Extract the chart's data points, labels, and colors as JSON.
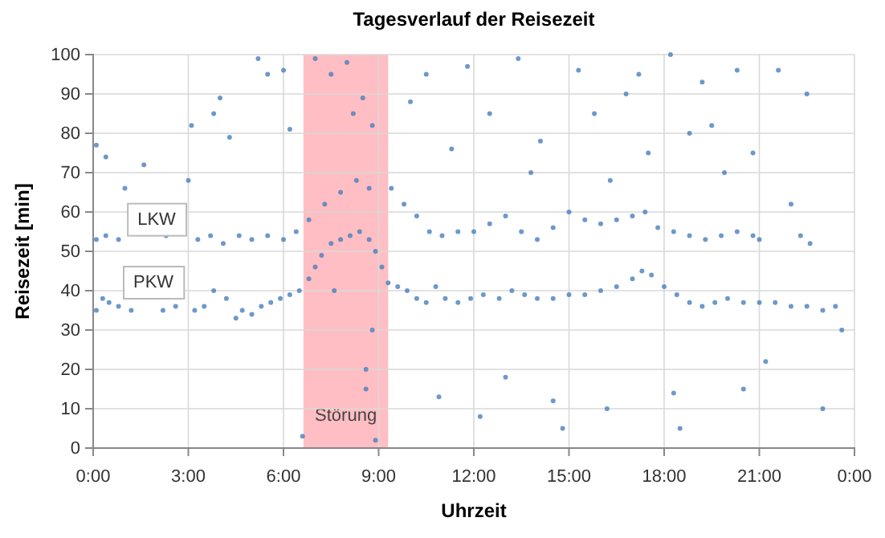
{
  "chart_data": {
    "type": "scatter",
    "title": "Tagesverlauf der Reisezeit",
    "xlabel": "Uhrzeit",
    "ylabel": "Reisezeit [min]",
    "xlim": [
      0,
      24
    ],
    "xticks": [
      {
        "value": 0,
        "label": "0:00"
      },
      {
        "value": 3,
        "label": "3:00"
      },
      {
        "value": 6,
        "label": "6:00"
      },
      {
        "value": 9,
        "label": "9:00"
      },
      {
        "value": 12,
        "label": "12:00"
      },
      {
        "value": 15,
        "label": "15:00"
      },
      {
        "value": 18,
        "label": "18:00"
      },
      {
        "value": 21,
        "label": "21:00"
      },
      {
        "value": 24,
        "label": "0:00"
      }
    ],
    "ylim": [
      0,
      100
    ],
    "yticks": [
      0,
      10,
      20,
      30,
      40,
      50,
      60,
      70,
      80,
      90,
      100
    ],
    "grid": true,
    "marker": "circle",
    "bands": [
      {
        "axis": "x",
        "from": 6.63,
        "to": 9.3,
        "label": "Störung",
        "color": "#ffb3b8"
      }
    ],
    "annotations": [
      {
        "text": "LKW",
        "x": 2.0,
        "y": 58
      },
      {
        "text": "PKW",
        "x": 1.9,
        "y": 42
      }
    ],
    "series": [
      {
        "color": "#4a7ebb",
        "x": [
          0.1,
          0.3,
          0.5,
          0.8,
          1.2,
          2.2,
          2.6,
          3.2,
          3.5,
          3.8,
          4.2,
          4.5,
          4.7,
          5.0,
          5.3,
          5.6,
          5.9,
          6.2,
          6.5,
          6.8,
          7.0,
          7.2,
          7.5,
          7.8,
          8.1,
          8.4,
          8.7,
          8.9,
          9.1,
          9.3,
          9.6,
          9.9,
          10.2,
          10.5,
          10.8,
          11.1,
          11.5,
          11.9,
          12.3,
          12.8,
          13.2,
          13.6,
          14.0,
          14.5,
          15.0,
          15.5,
          16.0,
          16.5,
          17.0,
          17.3,
          17.6,
          18.0,
          18.4,
          18.8,
          19.2,
          19.6,
          20.0,
          20.5,
          21.0,
          21.5,
          22.0,
          22.5,
          23.0,
          23.4,
          0.1,
          0.4,
          0.8,
          3.3,
          3.7,
          4.1,
          4.6,
          5.0,
          5.5,
          6.0,
          6.4,
          6.8,
          7.3,
          7.8,
          8.3,
          8.7,
          9.4,
          9.8,
          10.2,
          10.6,
          11.0,
          11.5,
          12.0,
          12.5,
          13.0,
          13.5,
          14.0,
          14.5,
          15.0,
          15.5,
          16.0,
          16.5,
          17.0,
          17.4,
          17.8,
          18.3,
          18.8,
          19.3,
          19.8,
          20.3,
          20.8,
          21.0,
          22.3,
          22.6,
          0.1,
          0.4,
          1.0,
          1.6,
          2.3,
          3.0,
          3.1,
          3.8,
          4.0,
          4.3,
          5.2,
          5.5,
          6.0,
          6.2,
          7.0,
          7.5,
          8.0,
          8.2,
          8.5,
          8.8,
          8.6,
          8.6,
          8.8,
          7.6,
          6.6,
          8.9,
          10.0,
          10.5,
          10.9,
          11.3,
          11.8,
          12.2,
          12.5,
          13.0,
          13.4,
          13.8,
          14.1,
          14.8,
          14.5,
          15.3,
          15.8,
          16.2,
          16.3,
          16.8,
          17.2,
          17.5,
          18.2,
          18.5,
          18.3,
          18.8,
          19.2,
          19.5,
          19.9,
          20.3,
          20.5,
          20.8,
          21.2,
          21.6,
          22.0,
          22.5,
          23.0,
          23.6
        ],
        "values": [
          35,
          38,
          37,
          36,
          35,
          35,
          36,
          35,
          36,
          40,
          38,
          33,
          35,
          34,
          36,
          37,
          38,
          39,
          40,
          43,
          46,
          49,
          52,
          53,
          54,
          55,
          53,
          50,
          46,
          42,
          41,
          40,
          38,
          37,
          41,
          38,
          37,
          38,
          39,
          38,
          40,
          39,
          38,
          38,
          39,
          39,
          40,
          41,
          43,
          45,
          44,
          41,
          39,
          37,
          36,
          37,
          38,
          37,
          37,
          37,
          36,
          36,
          35,
          36,
          53,
          54,
          53,
          53,
          54,
          52,
          54,
          53,
          54,
          53,
          55,
          58,
          62,
          65,
          68,
          66,
          66,
          62,
          59,
          55,
          54,
          55,
          55,
          57,
          59,
          55,
          53,
          56,
          60,
          58,
          57,
          58,
          59,
          60,
          56,
          55,
          54,
          53,
          54,
          55,
          54,
          53,
          54,
          52,
          77,
          74,
          66,
          72,
          54,
          68,
          82,
          85,
          89,
          79,
          99,
          95,
          96,
          81,
          99,
          95,
          98,
          85,
          89,
          82,
          20,
          15,
          30,
          40,
          3,
          2,
          88,
          95,
          13,
          76,
          97,
          8,
          85,
          18,
          99,
          70,
          78,
          5,
          12,
          96,
          85,
          10,
          68,
          90,
          95,
          75,
          100,
          5,
          14,
          80,
          93,
          82,
          70,
          96,
          15,
          75,
          22,
          96,
          62,
          90,
          10,
          30
        ]
      }
    ]
  }
}
